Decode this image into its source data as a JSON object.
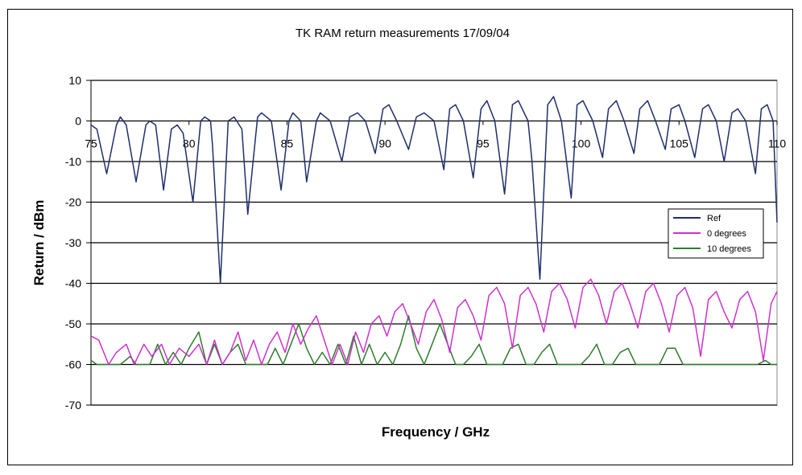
{
  "chart_data": {
    "type": "line",
    "title": "TK RAM return measurements 17/09/04",
    "xlabel": "Frequency / GHz",
    "ylabel": "Return / dBm",
    "xlim": [
      75,
      110
    ],
    "ylim": [
      -70,
      10
    ],
    "x_ticks": [
      75,
      80,
      85,
      90,
      95,
      100,
      105,
      110
    ],
    "x_tick_labels": [
      "75",
      "80",
      "85",
      "90",
      "95",
      "100",
      "105",
      "110"
    ],
    "y_ticks": [
      10,
      0,
      -10,
      -20,
      -30,
      -40,
      -50,
      -60,
      -70
    ],
    "y_tick_labels": [
      "10",
      "0",
      "-10",
      "-20",
      "-30",
      "-40",
      "-50",
      "-60",
      "-70"
    ],
    "grid": "horizontal",
    "legend": "right",
    "series": [
      {
        "name": "Ref",
        "color": "#1f2f6b",
        "points": [
          [
            75.0,
            -1
          ],
          [
            75.3,
            -2
          ],
          [
            75.8,
            -13
          ],
          [
            76.3,
            -1
          ],
          [
            76.5,
            1
          ],
          [
            76.8,
            -1
          ],
          [
            77.3,
            -15
          ],
          [
            77.8,
            -1
          ],
          [
            78.0,
            0
          ],
          [
            78.3,
            -1
          ],
          [
            78.7,
            -17
          ],
          [
            79.1,
            -2
          ],
          [
            79.4,
            -1
          ],
          [
            79.7,
            -3
          ],
          [
            80.2,
            -20
          ],
          [
            80.6,
            0
          ],
          [
            80.8,
            1
          ],
          [
            81.1,
            0
          ],
          [
            81.2,
            -6
          ],
          [
            81.6,
            -40
          ],
          [
            82.0,
            0
          ],
          [
            82.3,
            1
          ],
          [
            82.7,
            -2
          ],
          [
            83.0,
            -23
          ],
          [
            83.5,
            1
          ],
          [
            83.7,
            2
          ],
          [
            84.2,
            0
          ],
          [
            84.7,
            -17
          ],
          [
            85.1,
            0
          ],
          [
            85.3,
            2
          ],
          [
            85.7,
            0
          ],
          [
            86.0,
            -15
          ],
          [
            86.5,
            0
          ],
          [
            86.7,
            2
          ],
          [
            87.2,
            0
          ],
          [
            87.8,
            -10
          ],
          [
            88.2,
            1
          ],
          [
            88.6,
            2
          ],
          [
            89.0,
            0
          ],
          [
            89.5,
            -8
          ],
          [
            89.9,
            3
          ],
          [
            90.2,
            4
          ],
          [
            90.6,
            0
          ],
          [
            91.2,
            -7
          ],
          [
            91.6,
            1
          ],
          [
            92.0,
            2
          ],
          [
            92.5,
            0
          ],
          [
            93.0,
            -12
          ],
          [
            93.3,
            3
          ],
          [
            93.6,
            4
          ],
          [
            94.0,
            0
          ],
          [
            94.5,
            -14
          ],
          [
            94.9,
            3
          ],
          [
            95.2,
            5
          ],
          [
            95.6,
            0
          ],
          [
            96.1,
            -18
          ],
          [
            96.5,
            4
          ],
          [
            96.8,
            5
          ],
          [
            97.3,
            0
          ],
          [
            97.5,
            -10
          ],
          [
            97.9,
            -39
          ],
          [
            98.3,
            4
          ],
          [
            98.6,
            6
          ],
          [
            99.0,
            0
          ],
          [
            99.5,
            -19
          ],
          [
            99.8,
            4
          ],
          [
            100.1,
            5
          ],
          [
            100.6,
            0
          ],
          [
            101.1,
            -9
          ],
          [
            101.4,
            3
          ],
          [
            101.8,
            5
          ],
          [
            102.2,
            0
          ],
          [
            102.7,
            -8
          ],
          [
            103.0,
            3
          ],
          [
            103.4,
            5
          ],
          [
            103.8,
            0
          ],
          [
            104.3,
            -7
          ],
          [
            104.6,
            3
          ],
          [
            105.0,
            4
          ],
          [
            105.3,
            0
          ],
          [
            105.8,
            -9
          ],
          [
            106.2,
            3
          ],
          [
            106.5,
            4
          ],
          [
            106.9,
            0
          ],
          [
            107.3,
            -10
          ],
          [
            107.7,
            2
          ],
          [
            108.0,
            3
          ],
          [
            108.4,
            0
          ],
          [
            108.9,
            -13
          ],
          [
            109.2,
            3
          ],
          [
            109.5,
            4
          ],
          [
            109.8,
            0
          ],
          [
            110.0,
            -25
          ]
        ]
      },
      {
        "name": "0 degrees",
        "color": "#cc33cc",
        "points": [
          [
            75.0,
            -53
          ],
          [
            75.4,
            -54
          ],
          [
            75.9,
            -60
          ],
          [
            76.3,
            -57
          ],
          [
            76.8,
            -55
          ],
          [
            77.2,
            -60
          ],
          [
            77.7,
            -55
          ],
          [
            78.1,
            -58
          ],
          [
            78.6,
            -55
          ],
          [
            79.0,
            -60
          ],
          [
            79.5,
            -56
          ],
          [
            80.0,
            -58
          ],
          [
            80.5,
            -55
          ],
          [
            80.9,
            -60
          ],
          [
            81.3,
            -54
          ],
          [
            81.7,
            -60
          ],
          [
            82.1,
            -57
          ],
          [
            82.5,
            -52
          ],
          [
            82.9,
            -59
          ],
          [
            83.3,
            -54
          ],
          [
            83.7,
            -60
          ],
          [
            84.1,
            -55
          ],
          [
            84.5,
            -52
          ],
          [
            84.9,
            -57
          ],
          [
            85.3,
            -50
          ],
          [
            85.7,
            -55
          ],
          [
            86.1,
            -51
          ],
          [
            86.5,
            -48
          ],
          [
            86.9,
            -54
          ],
          [
            87.3,
            -60
          ],
          [
            87.7,
            -55
          ],
          [
            88.1,
            -60
          ],
          [
            88.5,
            -52
          ],
          [
            88.9,
            -57
          ],
          [
            89.3,
            -50
          ],
          [
            89.7,
            -48
          ],
          [
            90.1,
            -53
          ],
          [
            90.5,
            -47
          ],
          [
            90.9,
            -45
          ],
          [
            91.3,
            -50
          ],
          [
            91.7,
            -55
          ],
          [
            92.1,
            -47
          ],
          [
            92.5,
            -44
          ],
          [
            92.9,
            -49
          ],
          [
            93.3,
            -57
          ],
          [
            93.7,
            -46
          ],
          [
            94.1,
            -44
          ],
          [
            94.5,
            -48
          ],
          [
            94.9,
            -54
          ],
          [
            95.3,
            -43
          ],
          [
            95.7,
            -41
          ],
          [
            96.1,
            -45
          ],
          [
            96.5,
            -56
          ],
          [
            96.9,
            -43
          ],
          [
            97.3,
            -41
          ],
          [
            97.7,
            -45
          ],
          [
            98.1,
            -52
          ],
          [
            98.5,
            -42
          ],
          [
            98.9,
            -40
          ],
          [
            99.3,
            -44
          ],
          [
            99.7,
            -51
          ],
          [
            100.1,
            -41
          ],
          [
            100.5,
            -39
          ],
          [
            100.9,
            -43
          ],
          [
            101.3,
            -50
          ],
          [
            101.7,
            -42
          ],
          [
            102.1,
            -40
          ],
          [
            102.5,
            -45
          ],
          [
            102.9,
            -51
          ],
          [
            103.3,
            -42
          ],
          [
            103.7,
            -40
          ],
          [
            104.1,
            -45
          ],
          [
            104.5,
            -52
          ],
          [
            104.9,
            -43
          ],
          [
            105.3,
            -41
          ],
          [
            105.7,
            -46
          ],
          [
            106.1,
            -58
          ],
          [
            106.5,
            -44
          ],
          [
            106.9,
            -42
          ],
          [
            107.3,
            -47
          ],
          [
            107.7,
            -51
          ],
          [
            108.1,
            -44
          ],
          [
            108.5,
            -42
          ],
          [
            108.9,
            -47
          ],
          [
            109.3,
            -59
          ],
          [
            109.7,
            -45
          ],
          [
            110.0,
            -42
          ]
        ]
      },
      {
        "name": "10 degrees",
        "color": "#2e7d2e",
        "points": [
          [
            75.0,
            -59
          ],
          [
            75.3,
            -60
          ],
          [
            76.5,
            -60
          ],
          [
            77.0,
            -58
          ],
          [
            77.3,
            -60
          ],
          [
            78.0,
            -60
          ],
          [
            78.4,
            -55
          ],
          [
            78.8,
            -60
          ],
          [
            79.2,
            -57
          ],
          [
            79.6,
            -60
          ],
          [
            80.0,
            -56
          ],
          [
            80.5,
            -52
          ],
          [
            80.9,
            -60
          ],
          [
            81.3,
            -55
          ],
          [
            81.7,
            -60
          ],
          [
            82.1,
            -57
          ],
          [
            82.5,
            -55
          ],
          [
            82.9,
            -60
          ],
          [
            83.3,
            -60
          ],
          [
            84.0,
            -60
          ],
          [
            84.4,
            -56
          ],
          [
            84.8,
            -60
          ],
          [
            85.2,
            -55
          ],
          [
            85.6,
            -50
          ],
          [
            86.0,
            -56
          ],
          [
            86.4,
            -60
          ],
          [
            86.8,
            -57
          ],
          [
            87.2,
            -60
          ],
          [
            87.6,
            -55
          ],
          [
            88.0,
            -60
          ],
          [
            88.4,
            -53
          ],
          [
            88.8,
            -60
          ],
          [
            89.2,
            -55
          ],
          [
            89.6,
            -60
          ],
          [
            90.0,
            -57
          ],
          [
            90.4,
            -60
          ],
          [
            90.8,
            -55
          ],
          [
            91.2,
            -48
          ],
          [
            91.6,
            -56
          ],
          [
            92.0,
            -60
          ],
          [
            92.4,
            -55
          ],
          [
            92.8,
            -50
          ],
          [
            93.2,
            -55
          ],
          [
            93.6,
            -60
          ],
          [
            94.0,
            -60
          ],
          [
            94.4,
            -58
          ],
          [
            94.8,
            -55
          ],
          [
            95.2,
            -60
          ],
          [
            95.6,
            -60
          ],
          [
            96.0,
            -60
          ],
          [
            96.4,
            -56
          ],
          [
            96.8,
            -55
          ],
          [
            97.2,
            -60
          ],
          [
            97.6,
            -60
          ],
          [
            98.0,
            -57
          ],
          [
            98.4,
            -55
          ],
          [
            98.8,
            -60
          ],
          [
            99.2,
            -60
          ],
          [
            100.0,
            -60
          ],
          [
            100.4,
            -58
          ],
          [
            100.8,
            -55
          ],
          [
            101.2,
            -60
          ],
          [
            101.6,
            -60
          ],
          [
            102.0,
            -57
          ],
          [
            102.4,
            -56
          ],
          [
            102.8,
            -60
          ],
          [
            103.2,
            -60
          ],
          [
            104.0,
            -60
          ],
          [
            104.4,
            -56
          ],
          [
            104.8,
            -56
          ],
          [
            105.2,
            -60
          ],
          [
            105.6,
            -60
          ],
          [
            106.5,
            -60
          ],
          [
            107.0,
            -60
          ],
          [
            108.0,
            -60
          ],
          [
            109.0,
            -60
          ],
          [
            109.4,
            -59
          ],
          [
            109.7,
            -60
          ],
          [
            110.0,
            -60
          ]
        ]
      }
    ]
  }
}
